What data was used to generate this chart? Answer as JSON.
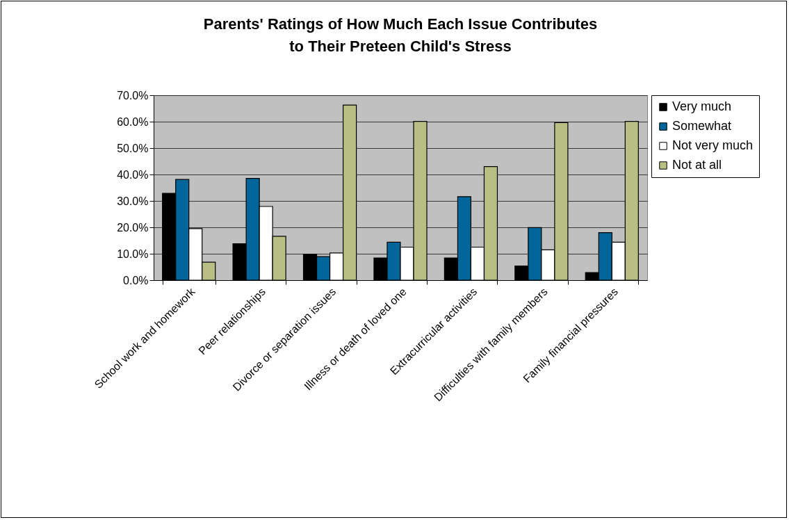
{
  "chart_data": {
    "type": "bar",
    "title": "Parents' Ratings of How Much Each Issue Contributes\nto Their Preteen Child's Stress",
    "categories": [
      "School work and homework",
      "Peer relationships",
      "Divorce or separation issues",
      "Illness or death of loved one",
      "Extracurricular activities",
      "Difficulties with family members",
      "Family financial pressures"
    ],
    "series": [
      {
        "name": "Very much",
        "color": "#000000",
        "values": [
          32.9,
          13.8,
          9.8,
          8.4,
          8.4,
          5.4,
          2.9
        ]
      },
      {
        "name": "Somewhat",
        "color": "#006699",
        "values": [
          38.1,
          38.5,
          8.9,
          14.4,
          31.6,
          19.9,
          18.0
        ]
      },
      {
        "name": "Not very much",
        "color": "#ffffff",
        "values": [
          19.5,
          27.9,
          10.3,
          12.5,
          12.5,
          11.5,
          14.4
        ]
      },
      {
        "name": "Not at all",
        "color": "#b9bf84",
        "values": [
          6.8,
          16.6,
          66.3,
          60.1,
          43.0,
          59.6,
          60.1
        ]
      }
    ],
    "ylim": [
      0,
      70
    ],
    "yticks": [
      {
        "value": 0,
        "label": "0.0%"
      },
      {
        "value": 10,
        "label": "10.0%"
      },
      {
        "value": 20,
        "label": "20.0%"
      },
      {
        "value": 30,
        "label": "30.0%"
      },
      {
        "value": 40,
        "label": "40.0%"
      },
      {
        "value": 50,
        "label": "50.0%"
      },
      {
        "value": 60,
        "label": "60.0%"
      },
      {
        "value": 70,
        "label": "70.0%"
      }
    ],
    "grid": "y",
    "legend": "right"
  }
}
